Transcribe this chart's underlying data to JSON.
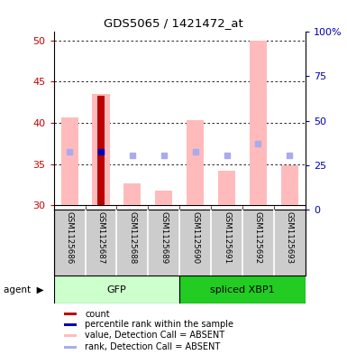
{
  "title": "GDS5065 / 1421472_at",
  "samples": [
    "GSM1125686",
    "GSM1125687",
    "GSM1125688",
    "GSM1125689",
    "GSM1125690",
    "GSM1125691",
    "GSM1125692",
    "GSM1125693"
  ],
  "groups": [
    {
      "name": "GFP",
      "color": "#ccffcc",
      "dark_color": "#44dd44",
      "count": 4
    },
    {
      "name": "spliced XBP1",
      "color": "#55ee55",
      "dark_color": "#22cc22",
      "count": 4
    }
  ],
  "ylim_left": [
    29.5,
    51
  ],
  "ylim_right": [
    0,
    100
  ],
  "yticks_left": [
    30,
    35,
    40,
    45,
    50
  ],
  "yticks_right": [
    0,
    25,
    50,
    75,
    100
  ],
  "ytick_labels_right": [
    "0",
    "25",
    "50",
    "75",
    "100%"
  ],
  "value_bars_color": "#ffbbbb",
  "rank_squares_color": "#aaaaee",
  "count_bars_color": "#bb0000",
  "percentile_squares_color": "#0000bb",
  "value_bars": [
    40.7,
    43.5,
    32.7,
    31.8,
    40.3,
    34.2,
    50.0,
    34.9
  ],
  "rank_squares": [
    36.5,
    36.5,
    36.0,
    36.0,
    36.5,
    36.0,
    37.5,
    36.0
  ],
  "count_bars": [
    null,
    43.3,
    null,
    null,
    null,
    null,
    null,
    null
  ],
  "percentile_squares": [
    null,
    36.5,
    null,
    null,
    null,
    null,
    null,
    null
  ],
  "bar_base": 30,
  "legend_items": [
    {
      "label": "count",
      "color": "#bb0000"
    },
    {
      "label": "percentile rank within the sample",
      "color": "#0000bb"
    },
    {
      "label": "value, Detection Call = ABSENT",
      "color": "#ffbbbb"
    },
    {
      "label": "rank, Detection Call = ABSENT",
      "color": "#aaaaee"
    }
  ],
  "left_tick_color": "#cc0000",
  "right_tick_color": "#0000bb",
  "sample_bg_color": "#cccccc",
  "plot_bg_color": "#ffffff"
}
